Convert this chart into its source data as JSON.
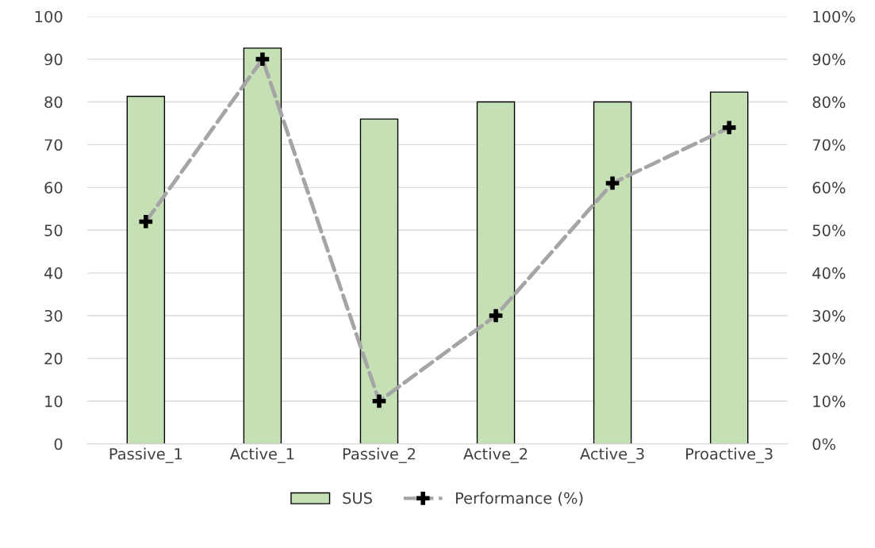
{
  "chart_data": {
    "type": "bar",
    "categories": [
      "Passive_1",
      "Active_1",
      "Passive_2",
      "Active_2",
      "Active_3",
      "Proactive_3"
    ],
    "series": [
      {
        "name": "SUS",
        "color": "#c5e0b4",
        "values": [
          81.3,
          92.6,
          76.0,
          80.0,
          80.0,
          82.3
        ]
      },
      {
        "name": "Performance (%)",
        "type": "line",
        "axis": "y2",
        "color": "#a5a5a5",
        "marker": "cross",
        "line_style": "dashed",
        "values": [
          52,
          90,
          10,
          30,
          61,
          74
        ]
      }
    ],
    "ylim": [
      0,
      100
    ],
    "yticks": [
      0,
      10,
      20,
      30,
      40,
      50,
      60,
      70,
      80,
      90,
      100
    ],
    "y2lim": [
      0,
      100
    ],
    "y2ticks": [
      {
        "value": 0,
        "label": "0%"
      },
      {
        "value": 10,
        "label": "10%"
      },
      {
        "value": 20,
        "label": "20%"
      },
      {
        "value": 30,
        "label": "30%"
      },
      {
        "value": 40,
        "label": "40%"
      },
      {
        "value": 50,
        "label": "50%"
      },
      {
        "value": 60,
        "label": "60%"
      },
      {
        "value": 70,
        "label": "70%"
      },
      {
        "value": 80,
        "label": "80%"
      },
      {
        "value": 90,
        "label": "90%"
      },
      {
        "value": 100,
        "label": "100%"
      }
    ],
    "grid": "y",
    "legend": "bottom"
  }
}
